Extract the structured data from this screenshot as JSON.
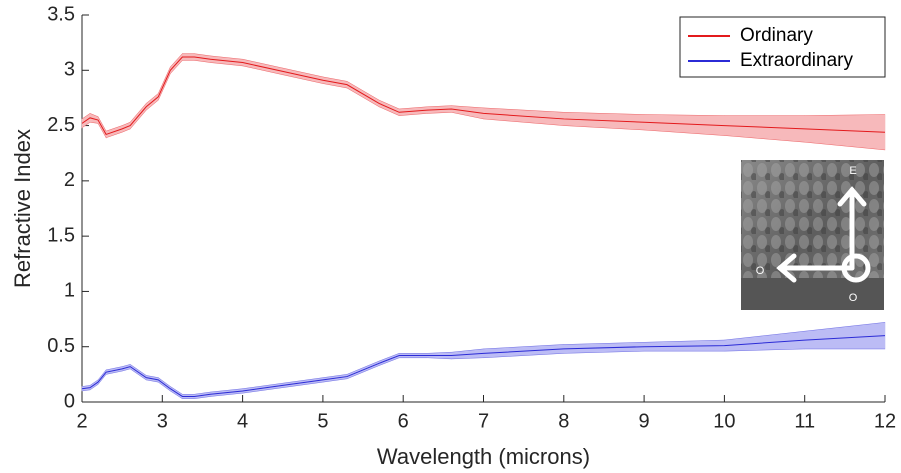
{
  "chart_data": {
    "type": "line",
    "x_label": "Wavelength (microns)",
    "y_label": "Refractive Index",
    "x": [
      2.0,
      2.1,
      2.2,
      2.3,
      2.5,
      2.6,
      2.8,
      2.95,
      3.1,
      3.25,
      3.4,
      3.6,
      4.0,
      4.5,
      5.0,
      5.3,
      5.7,
      5.95,
      6.3,
      6.6,
      7,
      8,
      9,
      10,
      11,
      12
    ],
    "series": [
      {
        "name": "Ordinary",
        "color": "#e31a1c",
        "band_color": "#f7b9bb",
        "values": [
          2.52,
          2.57,
          2.55,
          2.42,
          2.47,
          2.5,
          2.67,
          2.76,
          3.0,
          3.12,
          3.12,
          3.1,
          3.07,
          2.99,
          2.91,
          2.87,
          2.7,
          2.62,
          2.64,
          2.65,
          2.61,
          2.56,
          2.53,
          2.5,
          2.47,
          2.44
        ],
        "upper": [
          2.56,
          2.61,
          2.58,
          2.45,
          2.5,
          2.53,
          2.7,
          2.79,
          3.03,
          3.15,
          3.15,
          3.13,
          3.1,
          3.02,
          2.94,
          2.9,
          2.73,
          2.65,
          2.67,
          2.68,
          2.66,
          2.62,
          2.6,
          2.59,
          2.59,
          2.6
        ],
        "lower": [
          2.48,
          2.53,
          2.52,
          2.39,
          2.44,
          2.47,
          2.64,
          2.73,
          2.97,
          3.09,
          3.09,
          3.07,
          3.04,
          2.96,
          2.88,
          2.84,
          2.67,
          2.59,
          2.61,
          2.62,
          2.56,
          2.5,
          2.46,
          2.41,
          2.35,
          2.28
        ]
      },
      {
        "name": "Extraordinary",
        "color": "#2b2bd6",
        "band_color": "#bcbcf5",
        "values": [
          0.12,
          0.13,
          0.18,
          0.27,
          0.3,
          0.32,
          0.22,
          0.2,
          0.12,
          0.05,
          0.05,
          0.07,
          0.1,
          0.15,
          0.2,
          0.23,
          0.35,
          0.42,
          0.42,
          0.42,
          0.44,
          0.48,
          0.5,
          0.51,
          0.56,
          0.6
        ],
        "upper": [
          0.14,
          0.15,
          0.2,
          0.29,
          0.32,
          0.34,
          0.24,
          0.22,
          0.14,
          0.07,
          0.07,
          0.09,
          0.12,
          0.17,
          0.22,
          0.25,
          0.37,
          0.44,
          0.44,
          0.45,
          0.48,
          0.52,
          0.54,
          0.56,
          0.64,
          0.72
        ],
        "lower": [
          0.1,
          0.11,
          0.16,
          0.25,
          0.28,
          0.3,
          0.2,
          0.18,
          0.1,
          0.03,
          0.03,
          0.05,
          0.08,
          0.13,
          0.18,
          0.21,
          0.33,
          0.4,
          0.4,
          0.39,
          0.4,
          0.44,
          0.46,
          0.46,
          0.48,
          0.48
        ]
      }
    ],
    "xlim": [
      2,
      12
    ],
    "xticks": [
      2,
      3,
      4,
      5,
      6,
      7,
      8,
      9,
      10,
      11,
      12
    ],
    "ylim": [
      0,
      3.5
    ],
    "yticks": [
      0,
      0.5,
      1,
      1.5,
      2,
      2.5,
      3,
      3.5
    ],
    "grid": false,
    "legend": "upper right",
    "inset": {
      "labels": [
        "E",
        "O",
        "O"
      ]
    }
  }
}
